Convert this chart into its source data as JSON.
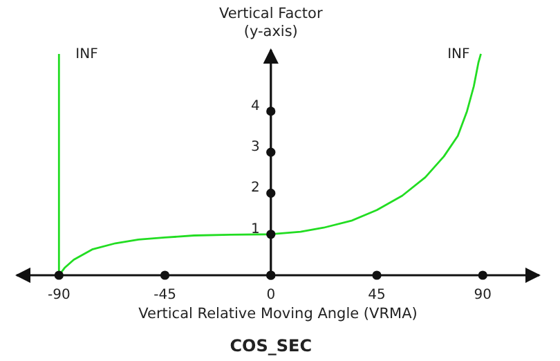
{
  "chart_data": {
    "type": "line",
    "title": "COS_SEC",
    "xlabel": "Vertical Relative Moving Angle (VRMA)",
    "ylabel": "Vertical Factor\n(y-axis)",
    "xlim": [
      -108,
      114
    ],
    "ylim": [
      0,
      5.5
    ],
    "xticks": [
      -90,
      -45,
      0,
      45,
      90
    ],
    "yticks": [
      {
        "value": 0,
        "label": null
      },
      1,
      2,
      3,
      4
    ],
    "grid": false,
    "marker": "none",
    "line_style": "solid",
    "series": [
      {
        "color": "#22dd22",
        "x": [
          -90,
          -87.6,
          -83.7,
          -75.9,
          -66,
          -56.2,
          -45,
          -32.6,
          -17,
          0,
          12.6,
          22.4,
          34.2,
          45,
          55.8,
          65.6,
          73.5,
          79.4,
          83.3,
          86.2,
          88.2,
          89.2
        ],
        "values": [
          0,
          0.18,
          0.38,
          0.63,
          0.78,
          0.87,
          0.92,
          0.97,
          0.99,
          1,
          1.06,
          1.16,
          1.33,
          1.59,
          1.94,
          2.39,
          2.9,
          3.4,
          4.0,
          4.61,
          5.2,
          5.4
        ]
      },
      {
        "color": "#22dd22",
        "x": [
          -90,
          -90
        ],
        "values": [
          0,
          5.4
        ]
      }
    ],
    "annotations": [
      {
        "text": "INF",
        "x": -90,
        "y": 5.4
      },
      {
        "text": "INF",
        "x": 89.2,
        "y": 5.4
      }
    ]
  }
}
